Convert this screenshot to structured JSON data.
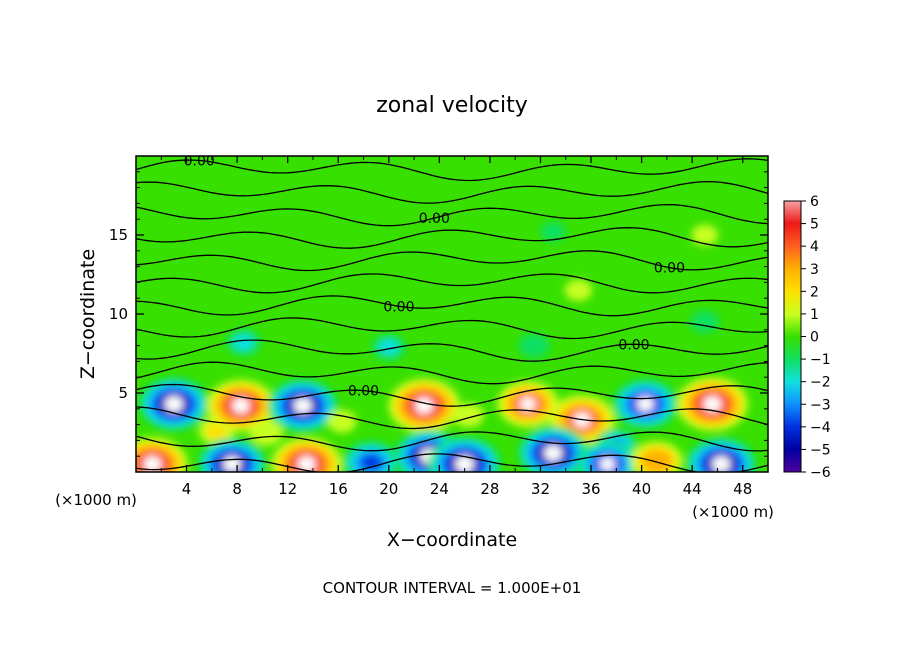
{
  "chart_data": {
    "type": "heatmap",
    "title": "zonal velocity",
    "xlabel": "X−coordinate",
    "ylabel": "Z−coordinate",
    "x_unit_left": "(×1000 m)",
    "x_unit_right": "(×1000 m)",
    "footer": "CONTOUR INTERVAL = 1.000E+01",
    "xlim": [
      0,
      50
    ],
    "ylim": [
      0,
      20
    ],
    "x_ticks": [
      "4",
      "8",
      "12",
      "16",
      "20",
      "24",
      "28",
      "32",
      "36",
      "40",
      "44",
      "48"
    ],
    "y_ticks": [
      "5",
      "10",
      "15"
    ],
    "colorbar": {
      "ticks": [
        "6",
        "5",
        "4",
        "3",
        "2",
        "1",
        "0",
        "−1",
        "−2",
        "−3",
        "−4",
        "−5",
        "−6"
      ],
      "range": [
        -6,
        6
      ],
      "colors": [
        "#f5a3a3",
        "#f01818",
        "#ff6020",
        "#ffb000",
        "#ffe000",
        "#c8ff20",
        "#38e000",
        "#10e060",
        "#10e0e0",
        "#1090ff",
        "#0030e0",
        "#0000a0",
        "#5000a0"
      ]
    },
    "contour_label": "0.00",
    "contour_level_count": 14,
    "background_value": 0,
    "vortices": [
      {
        "x": 3.0,
        "z": 4.3,
        "value": -5.5
      },
      {
        "x": 6.4,
        "z": 2.6,
        "value": 1.8
      },
      {
        "x": 8.3,
        "z": 4.2,
        "value": 5.3
      },
      {
        "x": 10.3,
        "z": 2.5,
        "value": 1.5
      },
      {
        "x": 13.2,
        "z": 4.2,
        "value": -5.5
      },
      {
        "x": 16.3,
        "z": 3.2,
        "value": 1.0
      },
      {
        "x": 22.8,
        "z": 4.2,
        "value": 5.6
      },
      {
        "x": 26.3,
        "z": 3.6,
        "value": 1.2
      },
      {
        "x": 31.0,
        "z": 4.3,
        "value": 4.5
      },
      {
        "x": 35.3,
        "z": 3.3,
        "value": 5.0
      },
      {
        "x": 40.3,
        "z": 4.3,
        "value": -5.0
      },
      {
        "x": 45.6,
        "z": 4.3,
        "value": 5.6
      },
      {
        "x": 38.0,
        "z": 1.7,
        "value": -2.5
      },
      {
        "x": 1.3,
        "z": 0.5,
        "value": 5.5
      },
      {
        "x": 7.6,
        "z": 0.5,
        "value": -5.3
      },
      {
        "x": 13.5,
        "z": 0.5,
        "value": 5.5
      },
      {
        "x": 18.6,
        "z": 0.6,
        "value": -4.0
      },
      {
        "x": 23.2,
        "z": 1.0,
        "value": -5.5
      },
      {
        "x": 26.0,
        "z": 0.5,
        "value": -5.8
      },
      {
        "x": 33.0,
        "z": 1.2,
        "value": -5.5
      },
      {
        "x": 37.3,
        "z": 0.5,
        "value": -4.5
      },
      {
        "x": 41.2,
        "z": 0.7,
        "value": 3.5
      },
      {
        "x": 46.3,
        "z": 0.5,
        "value": -5.5
      },
      {
        "x": 8.5,
        "z": 8.2,
        "value": -1.6
      },
      {
        "x": 20.0,
        "z": 7.9,
        "value": -1.5
      },
      {
        "x": 31.5,
        "z": 8.0,
        "value": -1.3
      },
      {
        "x": 45.0,
        "z": 9.5,
        "value": -1.0
      },
      {
        "x": 35.0,
        "z": 11.5,
        "value": 0.8
      },
      {
        "x": 20.0,
        "z": 14.0,
        "value": 0.5
      },
      {
        "x": 33.0,
        "z": 15.2,
        "value": -0.6
      },
      {
        "x": 45.0,
        "z": 15.0,
        "value": 0.7
      }
    ]
  }
}
